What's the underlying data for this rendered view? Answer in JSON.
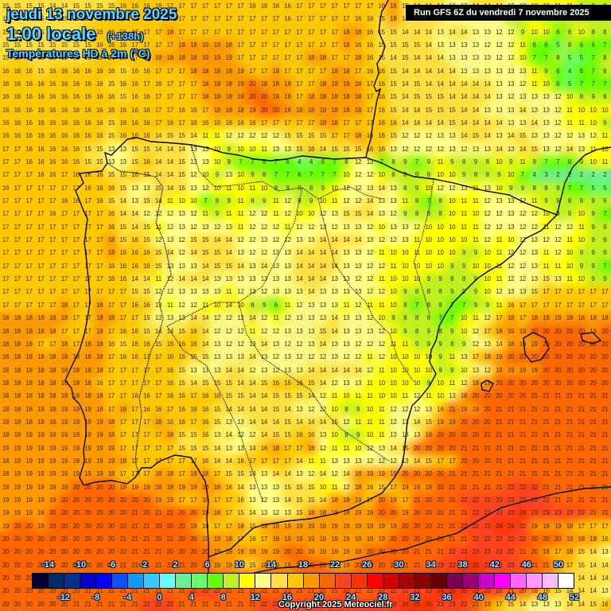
{
  "header": {
    "date": "jeudi 13 novembre 2025",
    "time": "1:00 locale",
    "offset": "(+138h)",
    "variable": "Températures HD à 2m (°C)",
    "run": "Run GFS 6Z du vendredi 7 novembre 2025"
  },
  "footer": {
    "copyright": "Copyright 2025 Meteociel.fr"
  },
  "legend": {
    "colors": [
      "#000033",
      "#002b66",
      "#00338f",
      "#0000c8",
      "#0000ff",
      "#0f4fff",
      "#0a9cff",
      "#33ccff",
      "#66ffff",
      "#66ee99",
      "#66ff66",
      "#66ff00",
      "#c0f020",
      "#ffff00",
      "#ffff88",
      "#ffe040",
      "#ffc800",
      "#ff9900",
      "#ff6600",
      "#ff4422",
      "#ff3300",
      "#ff0000",
      "#d00000",
      "#aa0000",
      "#880000",
      "#660000",
      "#770055",
      "#990077",
      "#cc00cc",
      "#ff00ff",
      "#ff66ff",
      "#ff99ff",
      "#ffbbff",
      "#ffffff"
    ],
    "labels_top": [
      "-14",
      "-10",
      "-6",
      "-2",
      "2",
      "6",
      "10",
      "14",
      "18",
      "22",
      "26",
      "30",
      "34",
      "38",
      "42",
      "46",
      "50"
    ],
    "labels_bottom": [
      "-12",
      "-8",
      "-4",
      "0",
      "4",
      "8",
      "12",
      "16",
      "20",
      "24",
      "28",
      "32",
      "36",
      "40",
      "44",
      "48",
      "52"
    ]
  },
  "grid": {
    "rows": [
      "15 15 15 15 14 14 15 15 15 15 16 16 16 16 17 17 17 17 17 17 17 16 16 16 16 17 17 17 17 17 17 17 16 18 15 14 14 14 13 13 14 14 14 13 13 10 10 11 11 9 8 8",
      "15 15 15 15 15 15 15 15 16 16 16 16 17 17 17 17 17 17 17 17 17 17 17 17 16 17 17 17 17 17 16 16 15 18 14 14 14 14 13 13 13 12 12 9 9 10 8 8 8 8 8 8",
      "15 15 15 15 15 15 15 16 16 16 16 17 17 17 18 17 17 17 17 17 17 17 17 17 17 17 17 17 17 18 18 16 15 15 14 14 14 13 14 14 13 13 12 12 9 10 10 6 8 10 8 8",
      "15 15 15 15 15 15 15 15 16 16 16 17 17 17 17 18 18 19 19 18 17 17 17 17 17 17 17 17 17 18 16 16 15 15 15 15 14 13 13 13 13 12 12 12 11 6 6 5 8 6 6 7",
      "15 16 15 15 15 15 15 15 16 16 16 17 17 18 18 18 18 19 19 19 17 17 17 17 17 17 18 18 17 17 18 16 15 14 15 14 14 14 13 13 13 13 12 12 10 7 7 8 5 5 7 8",
      "16 16 16 15 16 16 16 16 16 16 15 16 16 17 17 17 18 18 18 19 19 17 17 18 17 17 17 17 18 18 17 16 16 15 14 14 14 14 14 13 13 13 13 13 13 11 9 6 4 6 7 8",
      "16 16 16 16 16 16 16 16 16 15 16 16 17 16 17 17 17 18 18 18 19 20 18 18 18 17 17 18 18 18 18 17 16 15 14 15 14 14 14 14 14 14 13 13 12 11 10 6 5 7 7 7",
      "16 16 16 16 16 16 16 16 16 16 15 16 16 17 17 17 17 18 18 18 19 20 20 18 18 17 18 18 18 18 18 17 16 15 14 15 15 15 14 14 14 14 13 12 13 13 13 12 10 8 9 8",
      "16 16 16 16 16 16 16 16 16 16 16 16 16 17 17 16 16 17 18 18 18 19 20 20 18 18 18 19 18 18 18 17 16 15 14 14 15 15 15 14 14 13 13 13 14 13 13 12 11 10 10 10",
      "16 16 16 16 16 16 16 16 16 15 16 16 16 17 16 17 16 16 16 16 16 16 17 17 17 17 17 18 18 17 17 17 16 16 14 14 14 14 15 14 14 14 14 13 13 14 13 12 11 11 10 9",
      "16 16 16 16 16 16 16 16 16 15 16 16 16 14 15 15 14 11 11 12 12 12 12 12 15 15 15 15 17 17 18 16 16 15 12 12 12 13 13 14 15 14 13 14 15 13 13 12 12 13 12 11",
      "17 17 16 16 16 16 16 15 15 13 13 15 15 14 14 14 13 13 10 9 10 10 11 13 13 15 16 14 15 15 15 16 16 13 12 12 12 12 13 12 13 13 14 13 14 15 13 12 14 13 11 10",
      "17 17 16 16 16 16 16 15 15 13 13 15 16 14 14 15 13 13 10 9 7 7 6 7 6 4 4 6 7 8 12 13 7 8 9 7 9 11 9 8 9 8 10 9 11 9 7 7 6 9 10 11",
      "17 17 17 16 16 17 16 16 16 15 15 16 15 14 14 15 12 10 9 13 10 9 8 7 7 6 7 7 7 10 12 12 10 8 8 9 8 10 10 9 8 8 9 10 7 4 3 2 2 2 2 2",
      "16 17 17 17 17 17 17 16 16 16 15 13 13 15 14 15 13 12 10 11 10 11 10 8 9 9 8 9 10 12 12 13 14 13 8 9 10 12 12 13 11 13 10 9 9 8 8 9 7 7 5 5",
      "17 17 17 17 17 16 16 17 16 15 14 13 15 14 11 10 10 7 8 9 11 8 9 11 12 9 9 10 11 12 12 14 13 13 11 8 7 8 10 11 11 12 13 13 12 11 9 9 8 8 9 9",
      "17 17 17 17 16 17 17 17 17 16 14 14 12 12 12 13 12 11 9 11 11 12 12 11 12 10 10 12 13 15 15 14 13 12 9 8 8 8 10 11 10 12 12 13 12 12 10 9 9 10 9 7",
      "17 17 17 17 17 17 17 17 17 16 15 14 15 11 12 13 12 13 12 13 11 12 12 12 11 12 12 13 12 13 13 12 10 13 13 12 10 10 10 11 11 12 12 13 12 12 11 12 12 11 9 9",
      "17 17 17 17 17 17 17 17 17 18 15 16 15 12 13 12 15 15 14 14 12 12 13 12 12 13 13 14 14 14 14 13 12 12 13 11 10 10 10 10 11 12 11 10 12 13 12 12 11 10 9 9",
      "17 17 17 17 17 17 17 17 17 18 16 16 16 15 14 12 14 15 15 14 13 12 12 13 13 14 14 14 14 13 13 12 11 10 10 11 10 10 10 9 9 10 11 12 12 13 11 12 10 9 9 9",
      "17 17 17 17 17 17 17 17 17 16 16 16 16 15 13 13 13 14 15 15 14 13 14 13 13 14 14 14 14 13 13 12 12 11 10 10 10 10 9 9 10 10 11 12 12 13 11 11 10 9 9 7",
      "17 17 17 17 17 17 17 17 17 16 16 14 14 11 12 14 14 14 13 13 13 13 13 13 13 14 14 14 13 13 12 12 11 10 10 10 9 9 8 8 9 10 11 12 12 13 15 13 11 10 9 9",
      "17 17 17 17 17 17 17 17 17 17 17 15 15 12 12 13 13 13 13 11 12 13 12 13 13 13 14 13 13 13 13 12 12 10 9 8 8 8 9 9 9 10 12 13 13 15 17 17 17 17 17 17",
      "17 17 17 17 17 18 17 17 18 17 17 16 16 13 11 12 12 11 10 14 10 8 9 6 11 12 13 13 13 11 12 11 11 10 8 7 8 8 7 7 9 9 11 16 17 17 17 17 17 17 17 17",
      "18 18 18 18 18 18 17 17 18 18 17 17 15 13 13 13 14 14 12 12 12 14 12 11 12 13 13 13 14 13 13 12 10 9 8 8 8 7 7 10 11 12 17 18 17 18 19 19 18 18 18 18",
      "18 18 18 18 18 17 17 17 18 17 16 16 15 14 14 15 16 14 12 12 12 11 12 12 13 13 13 15 14 13 13 13 12 10 9 8 9 8 9 10 12 17 18 19 19 20 20 20 20 20 19 20",
      "18 18 18 17 17 18 17 18 18 16 15 16 16 15 16 16 16 14 13 12 12 13 14 13 12 12 13 14 13 13 12 12 12 11 11 9 9 9 8 9 12 13 14 18 19 19 20 20 20 20 20 20",
      "18 18 18 18 18 18 18 18 18 17 16 16 17 17 16 16 15 15 13 13 13 14 13 12 13 12 12 12 13 12 12 11 12 10 10 10 10 9 11 13 17 18 19 20 20 20 20 20 20 20 20 20",
      "18 18 18 18 18 18 18 18 18 17 17 17 17 17 16 15 13 13 13 14 14 12 13 12 13 13 14 14 14 14 14 12 11 10 10 10 10 9 9 10 13 12 19 19 19 19 20 20 20 20 20 20",
      "18 18 18 18 18 18 18 18 16 17 17 17 17 17 16 15 14 15 15 15 14 14 15 16 16 16 15 14 12 13 13 11 10 10 10 10 9 10 11 12 18 19 20 20 20 20 20 20 20 20 20 20",
      "18 18 18 18 18 18 18 18 18 17 17 16 16 17 16 16 17 16 16 15 15 14 14 15 15 15 14 12 11 10 11 11 10 10 11 12 11 10 13 18 20 20 20 20 20 21 21 21 21 21 21 21",
      "18 18 18 18 18 19 19 19 18 17 18 17 16 16 17 16 16 16 15 14 14 14 14 15 14 13 12 12 10 8 9 10 11 12 12 12 13 16 21 19 19 20 21 21 21 21 21 21 21 21 21 21",
      "18 18 18 18 18 19 19 19 19 18 17 17 17 18 16 16 17 16 15 13 13 14 14 14 15 14 14 14 15 12 11 11 11 12 13 14 15 19 19 20 20 20 21 21 21 21 21 21 21 21 21 21",
      "18 18 19 19 19 19 19 19 19 18 17 17 17 17 18 15 15 16 13 14 12 12 14 15 15 16 16 13 10 9 9 10 11 13 13 13 18 20 20 20 20 21 21 21 21 21 21 21 21 21 21 21",
      "19 19 19 19 19 19 19 19 19 19 17 17 17 17 17 15 15 15 14 13 13 14 16 18 17 17 18 12 11 11 10 12 13 14 15 20 20 20 20 21 21 21 21 21 21 21 21 21 21 21 21 21",
      "18 19 19 19 19 19 19 19 19 19 18 17 17 17 17 17 17 16 14 14 16 17 17 17 17 14 11 11 13 13 13 12 12 12 13 14 15 17 17 20 20 20 21 21 21 21 21 21 21 21 21 21",
      "18 19 19 19 19 19 19 19 19 18 17 17 17 18 18 17 18 18 17 15 15 14 13 14 14 13 12 14 12 14 18 19 19 19 20 20 20 20 21 21 21 21 21 21 21 21 21 21 21 21 21 21",
      "18 19 19 19 19 19 20 20 20 20 19 19 19 18 18 19 19 18 18 16 14 13 13 13 15 15 15 10 11 12 18 16 15 17 19 19 19 20 21 21 21 21 21 22 22 22 21 21 21 21 21 21",
      "19 19 19 19 19 20 20 20 20 20 20 20 20 19 19 17 17 18 17 17 16 13 12 13 14 15 15 14 18 18 19 17 20 19 17 21 20 20 21 22 22 22 23 23 22 22 22 21 21 21 21 21",
      "19 19 19 19 20 20 20 20 20 20 20 21 20 21 21 20 20 19 18 17 15 14 13 12 13 15 18 18 18 18 19 19 20 20 19 20 20 20 21 21 22 22 23 23 24 23 23 23 23 22 21 21",
      "19 20 20 19 20 20 20 20 20 20 20 21 21 20 20 20 19 16 17 17 18 15 18 19 19 19 19 19 19 19 19 19 19 19 20 20 20 21 21 22 22 23 24 24 22 19 19 19 18 17 17 17",
      "20 20 20 20 20 20 20 20 20 20 21 21 21 20 21 20 20 19 19 18 17 16 17 18 19 19 19 19 19 19 19 19 19 20 20 20 20 20 21 21 22 22 22 22 22 20 20 20 19 18 18 16",
      "20 20 20 20 20 20 20 20 20 20 20 21 21 21 20 20 20 20 19 19 19 19 19 19 20 20 19 19 19 19 19 20 20 20 20 21 21 21 22 23 23 23 23 22 21 20 18 17 18 15 14 13",
      "20 20 20 20 20 20 20 20 20 21 21 21 21 21 21 21 20 20 19 19 17 15 18 19 19 20 20 20 19 19 20 20 20 21 21 21 21 23 22 24 25 23 23 23 22 21 21 19 17 15 14 14",
      "20 20 20 20 20 20 20 21 21 21 21 21 21 21 21 21 21 21 20 20 20 20 20 21 21 21 21 21 21 21 21 21 21 21 21 22 23 23 24 25 25 23 23 22 21 20 19 17 15 14 14 14",
      "20 20 20 20 20 20 20 21 21 21 21 21 21 21 21 21 22 22 22 21 21 21 21 21 21 21 21 21 21 22 21 21 22 22 22 22 23 24 25 25 23 23 22 21 20 18 16 15 14 14 14 13",
      "20 20 20 20 20 20 21 21 21 21 21 21 22 22 22 21 21 21 21 21 21 21 22 22 22 22 22 22 22 23 23 23 23 23 24 25 25 23 23 22 21 19 17 15 14 13 13 13 14 14 15 16"
    ]
  }
}
